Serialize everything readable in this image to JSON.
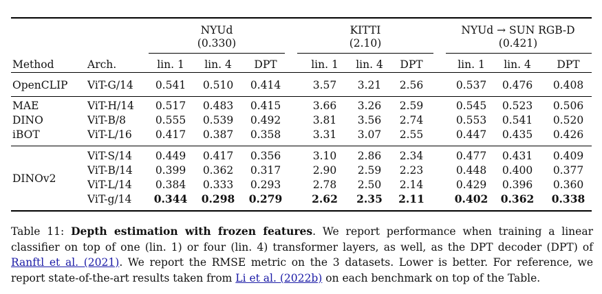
{
  "table": {
    "groups": [
      {
        "name": "NYUd",
        "ref": "(0.330)"
      },
      {
        "name": "KITTI",
        "ref": "(2.10)"
      },
      {
        "name": "NYUd → SUN RGB-D",
        "ref": "(0.421)"
      }
    ],
    "headers": {
      "method": "Method",
      "arch": "Arch.",
      "sub": [
        "lin. 1",
        "lin. 4",
        "DPT",
        "lin. 1",
        "lin. 4",
        "DPT",
        "lin. 1",
        "lin. 4",
        "DPT"
      ]
    },
    "rows": [
      {
        "method": "OpenCLIP",
        "arch": "ViT-G/14",
        "values": [
          "0.541",
          "0.510",
          "0.414",
          "3.57",
          "3.21",
          "2.56",
          "0.537",
          "0.476",
          "0.408"
        ]
      },
      {
        "method": "MAE",
        "arch": "ViT-H/14",
        "values": [
          "0.517",
          "0.483",
          "0.415",
          "3.66",
          "3.26",
          "2.59",
          "0.545",
          "0.523",
          "0.506"
        ]
      },
      {
        "method": "DINO",
        "arch": "ViT-B/8",
        "values": [
          "0.555",
          "0.539",
          "0.492",
          "3.81",
          "3.56",
          "2.74",
          "0.553",
          "0.541",
          "0.520"
        ]
      },
      {
        "method": "iBOT",
        "arch": "ViT-L/16",
        "values": [
          "0.417",
          "0.387",
          "0.358",
          "3.31",
          "3.07",
          "2.55",
          "0.447",
          "0.435",
          "0.426"
        ]
      },
      {
        "method": "",
        "arch": "ViT-S/14",
        "values": [
          "0.449",
          "0.417",
          "0.356",
          "3.10",
          "2.86",
          "2.34",
          "0.477",
          "0.431",
          "0.409"
        ]
      },
      {
        "method": "",
        "arch": "ViT-B/14",
        "values": [
          "0.399",
          "0.362",
          "0.317",
          "2.90",
          "2.59",
          "2.23",
          "0.448",
          "0.400",
          "0.377"
        ]
      },
      {
        "method": "",
        "arch": "ViT-L/14",
        "values": [
          "0.384",
          "0.333",
          "0.293",
          "2.78",
          "2.50",
          "2.14",
          "0.429",
          "0.396",
          "0.360"
        ]
      },
      {
        "method": "",
        "arch": "ViT-g/14",
        "values": [
          "0.344",
          "0.298",
          "0.279",
          "2.62",
          "2.35",
          "2.11",
          "0.402",
          "0.362",
          "0.338"
        ]
      }
    ],
    "dinov2_label": "DINOv2"
  },
  "caption": {
    "table_no": "Table 11:",
    "title": "Depth estimation with frozen features",
    "text1": ". We report performance when training a linear classifier on top of one (lin. 1) or four (lin. 4) transformer layers, as well, as the DPT decoder (DPT) of ",
    "cite1": "Ranftl et al. (2021)",
    "text2": ". We report the RMSE metric on the 3 datasets. Lower is better. For reference, we report state-of-the-art results taken from ",
    "cite2": "Li et al. (2022b)",
    "text3": " on each benchmark on top of the Table."
  }
}
